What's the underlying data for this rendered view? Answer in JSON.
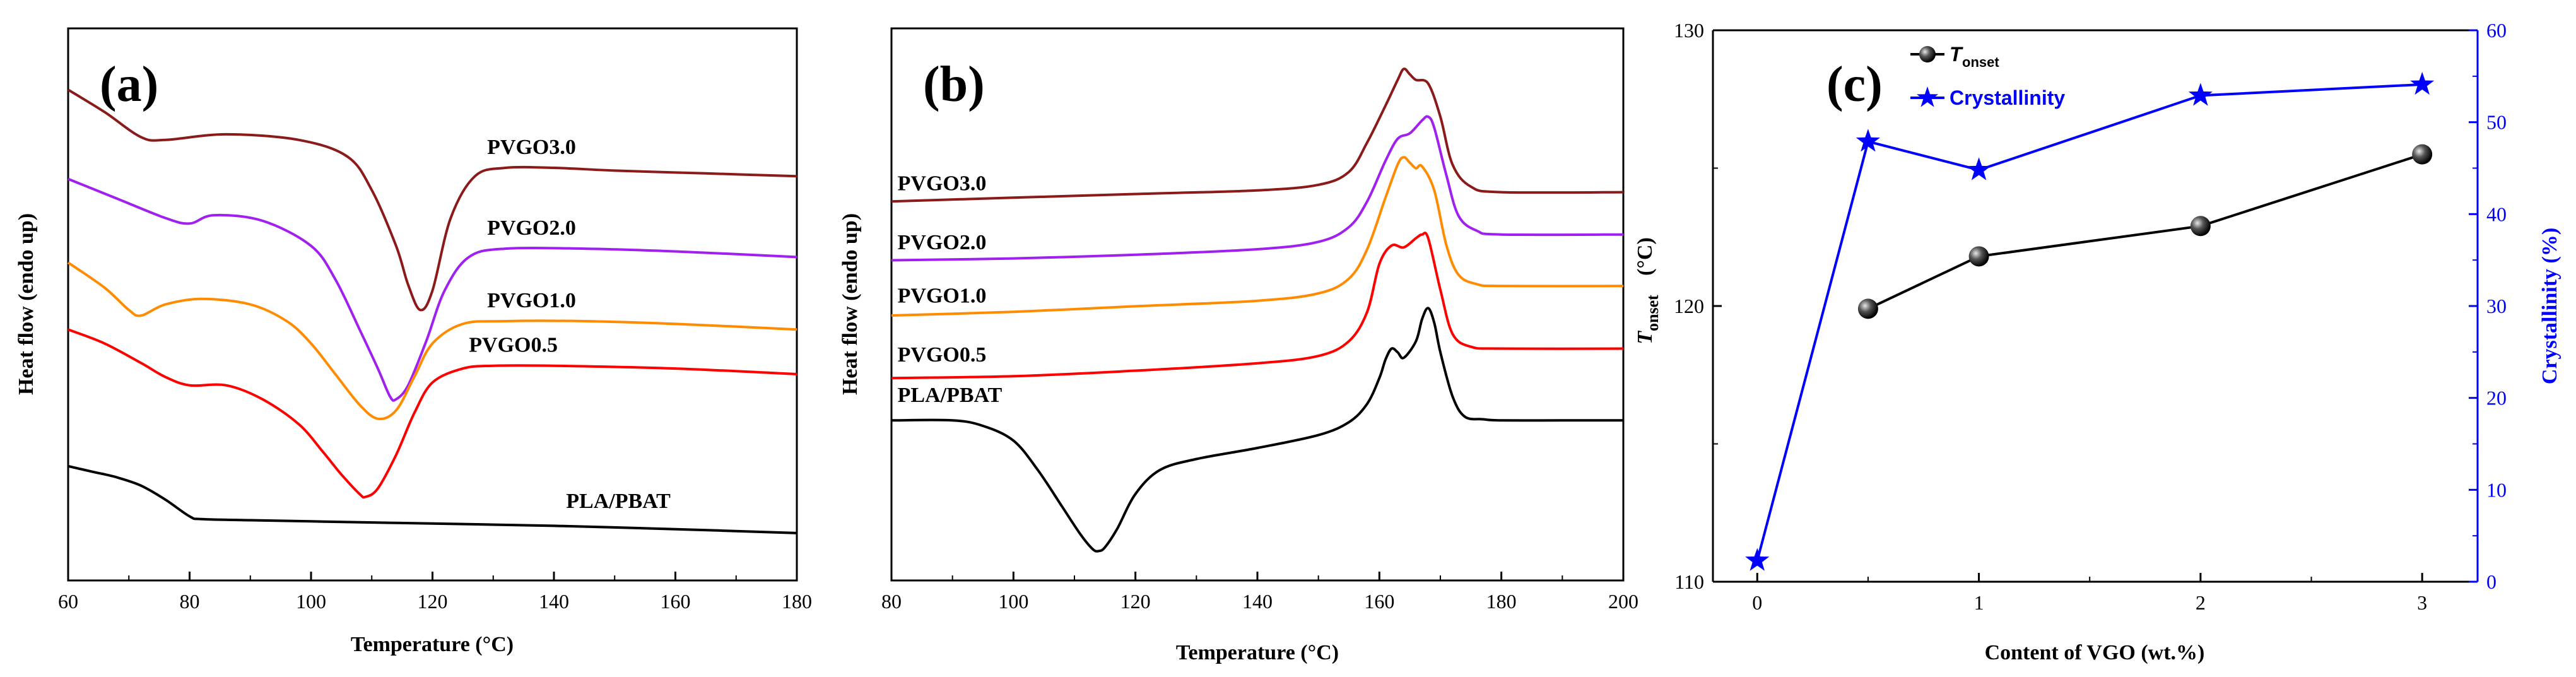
{
  "colors": {
    "pvgo3": "#8b1a1a",
    "pvgo2": "#a020f0",
    "pvgo1": "#ff8c00",
    "pvgo05": "#ff0000",
    "plapbat": "#000000",
    "blue": "#0000ff"
  },
  "chart_data": [
    {
      "type": "line",
      "panel_label": "(a)",
      "xlabel": "Temperature (°C)",
      "ylabel": "Heat flow (endo up)",
      "xlim": [
        60,
        180
      ],
      "xticks": [
        "60",
        "80",
        "100",
        "120",
        "140",
        "160",
        "180"
      ],
      "series": [
        {
          "name": "PVGO3.0",
          "color_key": "pvgo3",
          "x": [
            60,
            66,
            72,
            76,
            86,
            98,
            106,
            110,
            114,
            116,
            118,
            120,
            123,
            127,
            132,
            140,
            150,
            165,
            180
          ],
          "y": [
            9.1,
            8.7,
            8.25,
            8.2,
            8.3,
            8.2,
            7.9,
            7.3,
            6.3,
            5.6,
            5.15,
            5.5,
            6.8,
            7.55,
            7.7,
            7.7,
            7.65,
            7.6,
            7.55
          ]
        },
        {
          "name": "PVGO2.0",
          "color_key": "pvgo2",
          "x": [
            60,
            68,
            76,
            80,
            84,
            92,
            100,
            104,
            108,
            111,
            113,
            114,
            116,
            119,
            122,
            126,
            132,
            145,
            160,
            180
          ],
          "y": [
            7.5,
            7.15,
            6.8,
            6.7,
            6.85,
            6.75,
            6.3,
            5.7,
            4.8,
            4.1,
            3.6,
            3.55,
            3.8,
            4.6,
            5.5,
            6.1,
            6.25,
            6.25,
            6.2,
            6.1
          ]
        },
        {
          "name": "PVGO1.0",
          "color_key": "pvgo1",
          "x": [
            60,
            66,
            70,
            72,
            76,
            82,
            90,
            96,
            100,
            104,
            108,
            111,
            114,
            117,
            120,
            125,
            132,
            145,
            160,
            180
          ],
          "y": [
            6.0,
            5.55,
            5.15,
            5.05,
            5.25,
            5.35,
            5.25,
            4.95,
            4.55,
            4.0,
            3.45,
            3.2,
            3.35,
            3.95,
            4.55,
            4.9,
            4.95,
            4.95,
            4.9,
            4.8
          ]
        },
        {
          "name": "PVGO0.5",
          "color_key": "pvgo05",
          "x": [
            60,
            66,
            72,
            76,
            80,
            86,
            92,
            98,
            102,
            105,
            108,
            109,
            111,
            114,
            117,
            120,
            125,
            130,
            140,
            160,
            180
          ],
          "y": [
            4.8,
            4.55,
            4.2,
            3.95,
            3.8,
            3.8,
            3.55,
            3.1,
            2.6,
            2.2,
            1.85,
            1.8,
            1.95,
            2.55,
            3.3,
            3.85,
            4.1,
            4.15,
            4.15,
            4.1,
            4.0
          ]
        },
        {
          "name": "PLA/PBAT",
          "color_key": "plapbat",
          "x": [
            60,
            64,
            68,
            72,
            76,
            80,
            82,
            90,
            100,
            120,
            140,
            160,
            180
          ],
          "y": [
            2.35,
            2.25,
            2.15,
            2.0,
            1.75,
            1.45,
            1.4,
            1.38,
            1.36,
            1.32,
            1.28,
            1.22,
            1.15
          ]
        }
      ]
    },
    {
      "type": "line",
      "panel_label": "(b)",
      "xlabel": "Temperature (°C)",
      "ylabel": "Heat flow (endo up)",
      "xlim": [
        80,
        200
      ],
      "xticks": [
        "80",
        "100",
        "120",
        "140",
        "160",
        "180",
        "200"
      ],
      "series": [
        {
          "name": "PVGO3.0",
          "color_key": "pvgo3",
          "x": [
            80,
            100,
            120,
            140,
            150,
            155,
            158,
            161,
            163,
            164,
            165,
            166,
            168,
            170,
            172,
            175,
            180,
            200
          ],
          "y": [
            7.3,
            7.4,
            7.5,
            7.6,
            7.75,
            8.1,
            8.9,
            9.9,
            10.6,
            10.9,
            10.75,
            10.6,
            10.5,
            9.6,
            8.3,
            7.7,
            7.55,
            7.55
          ]
        },
        {
          "name": "PVGO2.0",
          "color_key": "pvgo2",
          "x": [
            80,
            100,
            120,
            140,
            150,
            155,
            158,
            161,
            163,
            165,
            167,
            168,
            169,
            171,
            173,
            176,
            180,
            200
          ],
          "y": [
            5.7,
            5.75,
            5.85,
            6.0,
            6.2,
            6.6,
            7.3,
            8.4,
            9.0,
            9.15,
            9.5,
            9.6,
            9.3,
            8.0,
            6.9,
            6.5,
            6.4,
            6.4
          ]
        },
        {
          "name": "PVGO1.0",
          "color_key": "pvgo1",
          "x": [
            80,
            100,
            120,
            140,
            150,
            155,
            158,
            161,
            163,
            164,
            165,
            166,
            167,
            169,
            171,
            173,
            176,
            180,
            200
          ],
          "y": [
            4.2,
            4.3,
            4.45,
            4.6,
            4.8,
            5.2,
            6.0,
            7.4,
            8.3,
            8.5,
            8.35,
            8.2,
            8.25,
            7.6,
            6.1,
            5.3,
            5.05,
            5.0,
            5.0
          ]
        },
        {
          "name": "PVGO0.5",
          "color_key": "pvgo05",
          "x": [
            80,
            100,
            120,
            140,
            150,
            155,
            158,
            160,
            162,
            164,
            166,
            167,
            168,
            170,
            172,
            175,
            180,
            200
          ],
          "y": [
            2.5,
            2.55,
            2.7,
            2.9,
            3.1,
            3.5,
            4.3,
            5.6,
            6.1,
            6.05,
            6.3,
            6.4,
            6.3,
            4.9,
            3.7,
            3.35,
            3.3,
            3.3
          ]
        },
        {
          "name": "PLA/PBAT",
          "color_key": "plapbat",
          "x": [
            80,
            90,
            95,
            100,
            104,
            108,
            111,
            113,
            114,
            115,
            117,
            120,
            124,
            130,
            140,
            150,
            155,
            158,
            160,
            161,
            162,
            163,
            164,
            166,
            167,
            168,
            169,
            170,
            172,
            174,
            177,
            180,
            190,
            200
          ],
          "y": [
            1.35,
            1.35,
            1.2,
            0.8,
            0.0,
            -1.0,
            -1.75,
            -2.15,
            -2.2,
            -2.1,
            -1.6,
            -0.65,
            0.0,
            0.3,
            0.6,
            0.95,
            1.3,
            1.8,
            2.5,
            3.0,
            3.3,
            3.2,
            3.05,
            3.5,
            4.1,
            4.4,
            4.0,
            3.2,
            2.0,
            1.45,
            1.38,
            1.35,
            1.35,
            1.35
          ]
        }
      ]
    },
    {
      "type": "scatter",
      "panel_label": "(c)",
      "xlabel": "Content of VGO (wt.%)",
      "ylabel_left_main": "T",
      "ylabel_left_sub": "onset",
      "ylabel_left_unit": "(°C)",
      "ylabel_right": "Crystallinity (%)",
      "xlim": [
        -0.2,
        3.25
      ],
      "xticks": [
        "0",
        "1",
        "2",
        "3"
      ],
      "ylim_left": [
        110,
        130
      ],
      "yticks_left": [
        "110",
        "120",
        "130"
      ],
      "ylim_right": [
        0,
        60
      ],
      "yticks_right": [
        "0",
        "10",
        "20",
        "30",
        "40",
        "50",
        "60"
      ],
      "legend_tonset_main": "T",
      "legend_tonset_sub": "onset",
      "legend_crystallinity": "Crystallinity",
      "tonset": {
        "x": [
          0.5,
          1,
          2,
          3
        ],
        "y": [
          119.9,
          121.8,
          122.9,
          125.5
        ]
      },
      "crystallinity": {
        "x": [
          0,
          0.5,
          1,
          2,
          3
        ],
        "y": [
          2.3,
          47.9,
          44.8,
          52.9,
          54.1
        ]
      }
    }
  ]
}
